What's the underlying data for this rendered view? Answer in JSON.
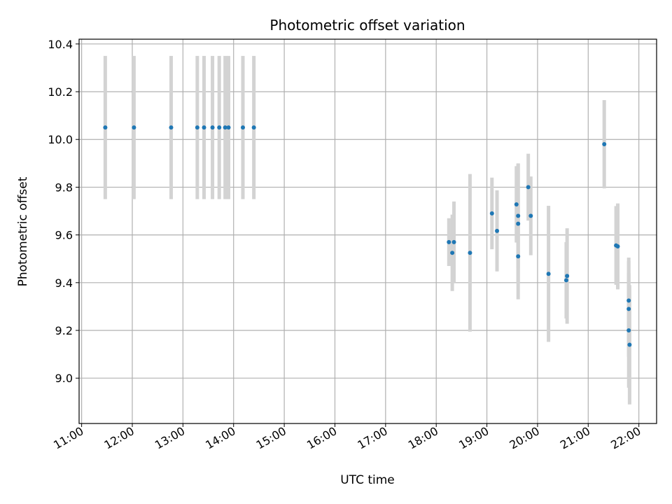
{
  "chart_data": {
    "type": "scatter",
    "title": "Photometric offset variation",
    "xlabel": "UTC time",
    "ylabel": "Photometric offset",
    "grid": true,
    "xlim": [
      "10:57",
      "22:21"
    ],
    "ylim": [
      8.81,
      10.42
    ],
    "x_ticks": [
      "11:00",
      "12:00",
      "13:00",
      "14:00",
      "15:00",
      "16:00",
      "17:00",
      "18:00",
      "19:00",
      "20:00",
      "21:00",
      "22:00"
    ],
    "y_ticks": [
      9.0,
      9.2,
      9.4,
      9.6,
      9.8,
      10.0,
      10.2,
      10.4
    ],
    "y_tick_labels": [
      "9.0",
      "9.2",
      "9.4",
      "9.6",
      "9.8",
      "10.0",
      "10.2",
      "10.4"
    ],
    "colors": {
      "point": "#1f77b4",
      "errorbar": "#d3d3d3",
      "grid": "#b0b0b0"
    },
    "series": [
      {
        "points": [
          {
            "x": "11:28",
            "y": 10.05,
            "yerr": 0.3
          },
          {
            "x": "12:02",
            "y": 10.05,
            "yerr": 0.3
          },
          {
            "x": "12:46",
            "y": 10.05,
            "yerr": 0.3
          },
          {
            "x": "13:17",
            "y": 10.05,
            "yerr": 0.3
          },
          {
            "x": "13:25",
            "y": 10.05,
            "yerr": 0.3
          },
          {
            "x": "13:35",
            "y": 10.05,
            "yerr": 0.3
          },
          {
            "x": "13:43",
            "y": 10.05,
            "yerr": 0.3
          },
          {
            "x": "13:50",
            "y": 10.05,
            "yerr": 0.3
          },
          {
            "x": "13:54",
            "y": 10.05,
            "yerr": 0.3
          },
          {
            "x": "14:11",
            "y": 10.05,
            "yerr": 0.3
          },
          {
            "x": "14:24",
            "y": 10.05,
            "yerr": 0.3
          },
          {
            "x": "18:15",
            "y": 9.57,
            "yerr": 0.1
          },
          {
            "x": "18:19",
            "y": 9.525,
            "yerr": 0.16
          },
          {
            "x": "18:21",
            "y": 9.57,
            "yerr": 0.17
          },
          {
            "x": "18:40",
            "y": 9.525,
            "yerr": 0.33
          },
          {
            "x": "19:06",
            "y": 9.69,
            "yerr": 0.15
          },
          {
            "x": "19:12",
            "y": 9.617,
            "yerr": 0.17
          },
          {
            "x": "19:35",
            "y": 9.728,
            "yerr": 0.16
          },
          {
            "x": "19:37",
            "y": 9.68,
            "yerr": 0.22
          },
          {
            "x": "19:37",
            "y": 9.647,
            "yerr": 0.25
          },
          {
            "x": "19:37",
            "y": 9.51,
            "yerr": 0.18
          },
          {
            "x": "19:49",
            "y": 9.8,
            "yerr": 0.14
          },
          {
            "x": "19:52",
            "y": 9.68,
            "yerr": 0.165
          },
          {
            "x": "20:13",
            "y": 9.437,
            "yerr": 0.285
          },
          {
            "x": "20:34",
            "y": 9.41,
            "yerr": 0.16
          },
          {
            "x": "20:35",
            "y": 9.428,
            "yerr": 0.2
          },
          {
            "x": "21:19",
            "y": 9.98,
            "yerr": 0.185
          },
          {
            "x": "21:33",
            "y": 9.556,
            "yerr": 0.165
          },
          {
            "x": "21:35",
            "y": 9.552,
            "yerr": 0.18
          },
          {
            "x": "21:48",
            "y": 9.325,
            "yerr": 0.18
          },
          {
            "x": "21:48",
            "y": 9.29,
            "yerr": 0.2
          },
          {
            "x": "21:48",
            "y": 9.2,
            "yerr": 0.24
          },
          {
            "x": "21:49",
            "y": 9.14,
            "yerr": 0.25
          }
        ]
      }
    ]
  }
}
